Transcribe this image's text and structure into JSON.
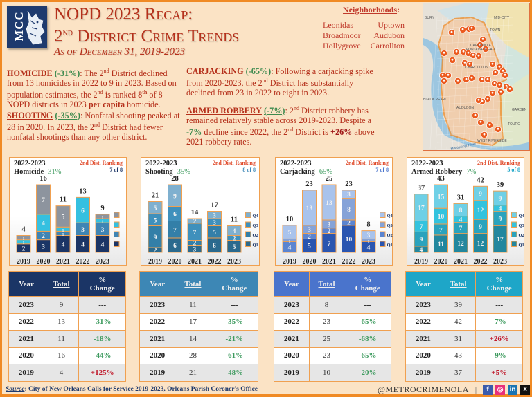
{
  "header": {
    "logo_text": "MCC",
    "title_line1": "NOPD 2023 Recap:",
    "title_line2_prefix": "2",
    "title_line2_sup": "nd",
    "title_line2_rest": " District Crime Trends",
    "subtitle": "As of December 31, 2019-2023"
  },
  "neighborhoods": {
    "title": "Neighborhoods",
    "items": [
      "Leonidas",
      "Uptown",
      "Broadmoor",
      "Audubon",
      "Hollygrove",
      "Carrollton"
    ]
  },
  "map": {
    "labels": [
      "BURY",
      "MID-CITY",
      "TOWN",
      "CARLYVILLE",
      "FONTAINEBLEAU",
      "CARROLLTON",
      "BLACK PEARL",
      "AUDUBON",
      "GARDEN",
      "TOURO",
      "WEST RIVERSIDE",
      "Mississippi River"
    ]
  },
  "paragraphs": {
    "homicide": {
      "heading": "HOMICIDE",
      "pct": "(-31%)",
      "t1": ": The 2",
      "sup1": "nd",
      "t2": " District declined from 13 homicides in 2022 to 9 in 2023.  Based on population estimates, the 2",
      "sup2": "nd",
      "t3": " is ranked ",
      "rank": "8",
      "rank_sup": "th",
      "t4": " of 8 NOPD districts in 2023 ",
      "bold": "per capita",
      "t5": " homicide."
    },
    "shooting": {
      "heading": "SHOOTING",
      "pct": "(-35%)",
      "t1": ": Nonfatal shooting peaked at 28 in 2020.  In 2023, the 2",
      "sup1": "nd",
      "t2": " District had fewer nonfatal shootings than any other district."
    },
    "carjacking": {
      "heading": "CARJACKING",
      "pct": "(-65%)",
      "t1": ": Following a carjacking spike from 2020-2023, the 2",
      "sup1": "nd",
      "t2": " District has substantially declined from 23 in 2022 to eight in 2023."
    },
    "robbery": {
      "heading": "ARMED ROBBERY",
      "pct": "(-7%)",
      "t1": ": 2",
      "sup1": "nd",
      "t2": " District robbery has remained relatively stable across 2019-2023.  Despite a ",
      "neg": "-7%",
      "t3": " decline since 2022, the 2",
      "sup2": "nd",
      "t4": " District is ",
      "pos": "+26%",
      "t5": " above 2021 robbery rates."
    }
  },
  "chart_data": [
    {
      "type": "bar",
      "stacked": true,
      "title": "2022-2023 Homicide",
      "title_period": "2022-2023",
      "title_name": "Homicide",
      "title_pct": "-31%",
      "ranking_label": "2nd Dist. Ranking",
      "ranking_value": "7 of 8",
      "categories": [
        "2019",
        "2020",
        "2021",
        "2022",
        "2023"
      ],
      "totals": [
        4,
        16,
        11,
        13,
        9
      ],
      "series": [
        {
          "name": "Q1",
          "values": [
            2,
            3,
            4,
            4,
            4
          ]
        },
        {
          "name": "Q2",
          "values": [
            0,
            2,
            1,
            3,
            3
          ]
        },
        {
          "name": "Q3",
          "values": [
            1,
            4,
            1,
            6,
            1
          ]
        },
        {
          "name": "Q4",
          "values": [
            1,
            7,
            5,
            0,
            1
          ]
        }
      ],
      "legend_labels_visible": false,
      "colors": [
        "#1b3566",
        "#3f85b4",
        "#35c0e0",
        "#8d949e"
      ],
      "accent": "#1b3566",
      "ylim": [
        0,
        16
      ]
    },
    {
      "type": "bar",
      "stacked": true,
      "title": "2022-2023 Shooting",
      "title_period": "2022-2023",
      "title_name": "Shooting",
      "title_pct": "-35%",
      "ranking_label": "2nd Dist. Ranking",
      "ranking_value": "8 of 8",
      "categories": [
        "2019",
        "2020",
        "2021",
        "2022",
        "2023"
      ],
      "totals": [
        21,
        28,
        14,
        17,
        11
      ],
      "series": [
        {
          "name": "Q1",
          "values": [
            2,
            6,
            3,
            6,
            5
          ]
        },
        {
          "name": "Q2",
          "values": [
            9,
            7,
            2,
            5,
            0
          ]
        },
        {
          "name": "Q3",
          "values": [
            5,
            6,
            7,
            3,
            2
          ]
        },
        {
          "name": "Q4",
          "values": [
            5,
            9,
            2,
            3,
            4
          ]
        }
      ],
      "legend_labels_visible": true,
      "colors": [
        "#2b6a8e",
        "#337fa8",
        "#3f90bc",
        "#7fb0cf"
      ],
      "accent": "#3f89b8",
      "ylim": [
        0,
        28
      ]
    },
    {
      "type": "bar",
      "stacked": true,
      "title": "2022-2023 Carjacking",
      "title_period": "2022-2023",
      "title_name": "Carjacking",
      "title_pct": "-65%",
      "ranking_label": "2nd Dist. Ranking",
      "ranking_value": "7 of 8",
      "categories": [
        "2019",
        "2020",
        "2021",
        "2022",
        "2023"
      ],
      "totals": [
        10,
        23,
        25,
        23,
        8
      ],
      "series": [
        {
          "name": "Q1",
          "values": [
            0,
            5,
            7,
            10,
            4
          ]
        },
        {
          "name": "Q2",
          "values": [
            4,
            2,
            2,
            2,
            0
          ]
        },
        {
          "name": "Q3",
          "values": [
            1,
            3,
            3,
            8,
            1
          ]
        },
        {
          "name": "Q4",
          "values": [
            5,
            13,
            13,
            3,
            3
          ]
        }
      ],
      "legend_labels_visible": true,
      "colors": [
        "#2a55b0",
        "#5b84d0",
        "#86a3d8",
        "#a9c3ec"
      ],
      "accent": "#4a74cc",
      "ylim": [
        0,
        25
      ]
    },
    {
      "type": "bar",
      "stacked": true,
      "title": "2022-2023 Armed Robbery",
      "title_period": "2022-2023",
      "title_name": "Armed Robbery",
      "title_pct": "-7%",
      "ranking_label": "2nd Dist. Ranking",
      "ranking_value": "5 of 8",
      "categories": [
        "2019",
        "2020",
        "2021",
        "2022",
        "2023"
      ],
      "totals": [
        37,
        43,
        31,
        42,
        39
      ],
      "series": [
        {
          "name": "Q1",
          "values": [
            4,
            11,
            12,
            12,
            17
          ]
        },
        {
          "name": "Q2",
          "values": [
            9,
            7,
            7,
            9,
            9
          ]
        },
        {
          "name": "Q3",
          "values": [
            7,
            10,
            4,
            12,
            4
          ]
        },
        {
          "name": "Q4",
          "values": [
            17,
            15,
            8,
            9,
            9
          ]
        }
      ],
      "legend_labels_visible": true,
      "colors": [
        "#22879e",
        "#2aa3bd",
        "#33c3de",
        "#6fd0e6"
      ],
      "accent": "#1ea6c8",
      "ylim": [
        0,
        43
      ]
    }
  ],
  "tables": [
    {
      "name": "homicide",
      "header_color": "#1b3566",
      "headers": [
        "Year",
        "Total",
        "%",
        "Change"
      ],
      "rows": [
        {
          "year": "2023",
          "total": "9",
          "change": "---",
          "dir": "neu"
        },
        {
          "year": "2022",
          "total": "13",
          "change": "-31%",
          "dir": "neg"
        },
        {
          "year": "2021",
          "total": "11",
          "change": "-18%",
          "dir": "neg"
        },
        {
          "year": "2020",
          "total": "16",
          "change": "-44%",
          "dir": "neg"
        },
        {
          "year": "2019",
          "total": "4",
          "change": "+125%",
          "dir": "pos"
        }
      ]
    },
    {
      "name": "shooting",
      "header_color": "#3d87b5",
      "headers": [
        "Year",
        "Total",
        "%",
        "Change"
      ],
      "rows": [
        {
          "year": "2023",
          "total": "11",
          "change": "---",
          "dir": "neu"
        },
        {
          "year": "2022",
          "total": "17",
          "change": "-35%",
          "dir": "neg"
        },
        {
          "year": "2021",
          "total": "14",
          "change": "-21%",
          "dir": "neg"
        },
        {
          "year": "2020",
          "total": "28",
          "change": "-61%",
          "dir": "neg"
        },
        {
          "year": "2019",
          "total": "21",
          "change": "-48%",
          "dir": "neg"
        }
      ]
    },
    {
      "name": "carjacking",
      "header_color": "#4a74cc",
      "headers": [
        "Year",
        "Total",
        "%",
        "Change"
      ],
      "rows": [
        {
          "year": "2023",
          "total": "8",
          "change": "---",
          "dir": "neu"
        },
        {
          "year": "2022",
          "total": "23",
          "change": "-65%",
          "dir": "neg"
        },
        {
          "year": "2021",
          "total": "25",
          "change": "-68%",
          "dir": "neg"
        },
        {
          "year": "2020",
          "total": "23",
          "change": "-65%",
          "dir": "neg"
        },
        {
          "year": "2019",
          "total": "10",
          "change": "-20%",
          "dir": "neg"
        }
      ]
    },
    {
      "name": "robbery",
      "header_color": "#1ea6c8",
      "headers": [
        "Year",
        "Total",
        "%",
        "Change"
      ],
      "rows": [
        {
          "year": "2023",
          "total": "39",
          "change": "---",
          "dir": "neu"
        },
        {
          "year": "2022",
          "total": "42",
          "change": "-7%",
          "dir": "neg"
        },
        {
          "year": "2021",
          "total": "31",
          "change": "+26%",
          "dir": "pos"
        },
        {
          "year": "2020",
          "total": "43",
          "change": "-9%",
          "dir": "neg"
        },
        {
          "year": "2019",
          "total": "37",
          "change": "+5%",
          "dir": "pos"
        }
      ]
    }
  ],
  "footer": {
    "source_label": "Source",
    "source_text": ": City of New Orleans Calls for Service 2019-2023, Orleans Parish Coroner's Office",
    "handle": "@METROCRIMENOLA",
    "separator": "|",
    "social": [
      {
        "name": "facebook-icon",
        "glyph": "f",
        "color": "#3b5bab"
      },
      {
        "name": "instagram-icon",
        "glyph": "◎",
        "color": "#e8307a"
      },
      {
        "name": "linkedin-icon",
        "glyph": "in",
        "color": "#1a74b3"
      },
      {
        "name": "x-icon",
        "glyph": "X",
        "color": "#111111"
      }
    ]
  }
}
